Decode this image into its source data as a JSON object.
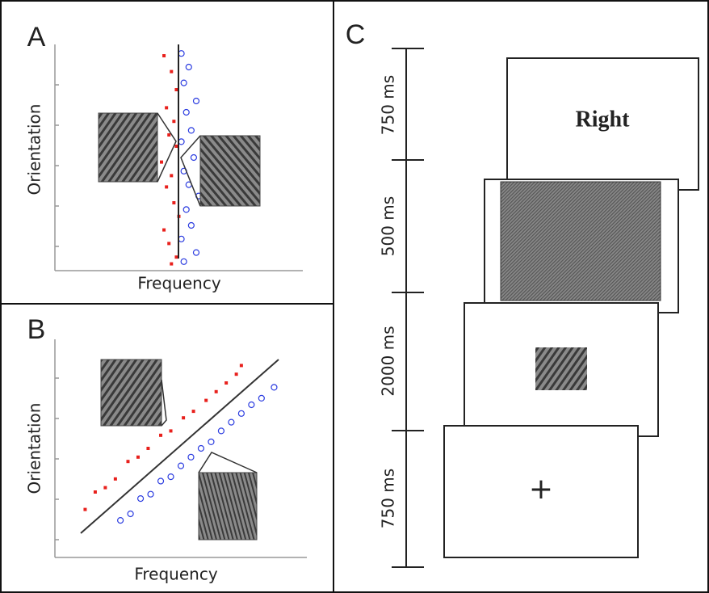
{
  "panels": [
    {
      "label": "A",
      "y_label": "Orientation",
      "x_label": "Frequency",
      "red": {
        "x": [
          44,
          47,
          49,
          45,
          48,
          46,
          49,
          43,
          47,
          45,
          48,
          50,
          44,
          46,
          49,
          47
        ],
        "y": [
          95,
          88,
          80,
          72,
          66,
          60,
          55,
          48,
          42,
          37,
          30,
          24,
          18,
          12,
          6,
          3
        ]
      },
      "blue": {
        "x": [
          51,
          54,
          52,
          57,
          53,
          55,
          51,
          56,
          52,
          54,
          58,
          53,
          55,
          51,
          57,
          52
        ],
        "y": [
          96,
          90,
          83,
          75,
          70,
          62,
          57,
          50,
          44,
          38,
          33,
          27,
          20,
          14,
          8,
          4
        ]
      }
    },
    {
      "label": "B",
      "y_label": "Orientation",
      "x_label": "Frequency",
      "red": {
        "x": [
          12,
          16,
          20,
          24,
          29,
          33,
          37,
          42,
          46,
          51,
          55,
          60,
          64,
          68,
          72,
          74
        ],
        "y": [
          22,
          30,
          32,
          36,
          44,
          46,
          50,
          56,
          58,
          64,
          67,
          72,
          76,
          80,
          84,
          88
        ]
      },
      "blue": {
        "x": [
          26,
          30,
          34,
          38,
          42,
          46,
          50,
          54,
          58,
          62,
          66,
          70,
          74,
          78,
          82,
          87
        ],
        "y": [
          17,
          20,
          27,
          29,
          35,
          37,
          42,
          46,
          50,
          53,
          58,
          62,
          66,
          70,
          73,
          78
        ]
      }
    }
  ],
  "panel_c": {
    "label": "C",
    "durations": [
      "750 ms",
      "500 ms",
      "2000 ms",
      "750 ms"
    ],
    "response_text": "Right",
    "fixation": "+"
  }
}
